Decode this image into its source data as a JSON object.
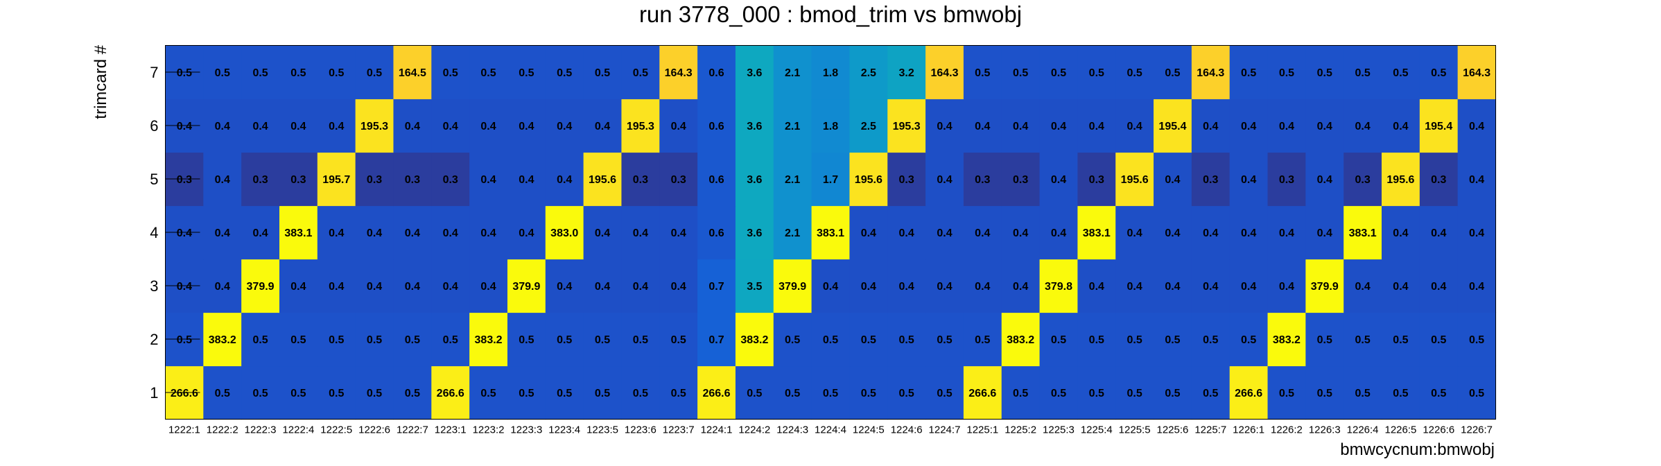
{
  "chart_data": {
    "type": "heatmap",
    "title": "run 3778_000 : bmod_trim vs bmwobj",
    "xlabel": "bmwcycnum:bmwobj",
    "ylabel": "trimcard #",
    "x_categories": [
      "1222:1",
      "1222:2",
      "1222:3",
      "1222:4",
      "1222:5",
      "1222:6",
      "1222:7",
      "1223:1",
      "1223:2",
      "1223:3",
      "1223:4",
      "1223:5",
      "1223:6",
      "1223:7",
      "1224:1",
      "1224:2",
      "1224:3",
      "1224:4",
      "1224:5",
      "1224:6",
      "1224:7",
      "1225:1",
      "1225:2",
      "1225:3",
      "1225:4",
      "1225:5",
      "1225:6",
      "1225:7",
      "1226:1",
      "1226:2",
      "1226:3",
      "1226:4",
      "1226:5",
      "1226:6",
      "1226:7"
    ],
    "y_categories": [
      "1",
      "2",
      "3",
      "4",
      "5",
      "6",
      "7"
    ],
    "values": [
      [
        "266.6",
        "0.5",
        "0.5",
        "0.5",
        "0.5",
        "0.5",
        "0.5",
        "266.6",
        "0.5",
        "0.5",
        "0.5",
        "0.5",
        "0.5",
        "0.5",
        "266.6",
        "0.5",
        "0.5",
        "0.5",
        "0.5",
        "0.5",
        "0.5",
        "266.6",
        "0.5",
        "0.5",
        "0.5",
        "0.5",
        "0.5",
        "0.5",
        "266.6",
        "0.5",
        "0.5",
        "0.5",
        "0.5",
        "0.5",
        "0.5"
      ],
      [
        "0.5",
        "383.2",
        "0.5",
        "0.5",
        "0.5",
        "0.5",
        "0.5",
        "0.5",
        "383.2",
        "0.5",
        "0.5",
        "0.5",
        "0.5",
        "0.5",
        "0.7",
        "383.2",
        "0.5",
        "0.5",
        "0.5",
        "0.5",
        "0.5",
        "0.5",
        "383.2",
        "0.5",
        "0.5",
        "0.5",
        "0.5",
        "0.5",
        "0.5",
        "383.2",
        "0.5",
        "0.5",
        "0.5",
        "0.5",
        "0.5"
      ],
      [
        "0.4",
        "0.4",
        "379.9",
        "0.4",
        "0.4",
        "0.4",
        "0.4",
        "0.4",
        "0.4",
        "379.9",
        "0.4",
        "0.4",
        "0.4",
        "0.4",
        "0.7",
        "3.5",
        "379.9",
        "0.4",
        "0.4",
        "0.4",
        "0.4",
        "0.4",
        "0.4",
        "379.8",
        "0.4",
        "0.4",
        "0.4",
        "0.4",
        "0.4",
        "0.4",
        "379.9",
        "0.4",
        "0.4",
        "0.4",
        "0.4"
      ],
      [
        "0.4",
        "0.4",
        "0.4",
        "383.1",
        "0.4",
        "0.4",
        "0.4",
        "0.4",
        "0.4",
        "0.4",
        "383.0",
        "0.4",
        "0.4",
        "0.4",
        "0.6",
        "3.6",
        "2.1",
        "383.1",
        "0.4",
        "0.4",
        "0.4",
        "0.4",
        "0.4",
        "0.4",
        "383.1",
        "0.4",
        "0.4",
        "0.4",
        "0.4",
        "0.4",
        "0.4",
        "383.1",
        "0.4",
        "0.4",
        "0.4"
      ],
      [
        "0.3",
        "0.4",
        "0.3",
        "0.3",
        "195.7",
        "0.3",
        "0.3",
        "0.3",
        "0.4",
        "0.4",
        "0.4",
        "195.6",
        "0.3",
        "0.3",
        "0.6",
        "3.6",
        "2.1",
        "1.7",
        "195.6",
        "0.3",
        "0.4",
        "0.3",
        "0.3",
        "0.4",
        "0.3",
        "195.6",
        "0.4",
        "0.3",
        "0.4",
        "0.3",
        "0.4",
        "0.3",
        "195.6",
        "0.3",
        "0.4"
      ],
      [
        "0.4",
        "0.4",
        "0.4",
        "0.4",
        "0.4",
        "195.3",
        "0.4",
        "0.4",
        "0.4",
        "0.4",
        "0.4",
        "0.4",
        "195.3",
        "0.4",
        "0.6",
        "3.6",
        "2.1",
        "1.8",
        "2.5",
        "195.3",
        "0.4",
        "0.4",
        "0.4",
        "0.4",
        "0.4",
        "0.4",
        "195.4",
        "0.4",
        "0.4",
        "0.4",
        "0.4",
        "0.4",
        "0.4",
        "195.4",
        "0.4"
      ],
      [
        "0.5",
        "0.5",
        "0.5",
        "0.5",
        "0.5",
        "0.5",
        "164.5",
        "0.5",
        "0.5",
        "0.5",
        "0.5",
        "0.5",
        "0.5",
        "164.3",
        "0.6",
        "3.6",
        "2.1",
        "1.8",
        "2.5",
        "3.2",
        "164.3",
        "0.5",
        "0.5",
        "0.5",
        "0.5",
        "0.5",
        "0.5",
        "164.3",
        "0.5",
        "0.5",
        "0.5",
        "0.5",
        "0.5",
        "0.5",
        "164.3"
      ]
    ],
    "colorscale": [
      {
        "v": 0.0,
        "color": "#2b3d9e"
      },
      {
        "v": 0.3,
        "color": "#2b3d9e"
      },
      {
        "v": 0.4,
        "color": "#1e4fc6"
      },
      {
        "v": 0.55,
        "color": "#1c53cc"
      },
      {
        "v": 0.75,
        "color": "#1466d9"
      },
      {
        "v": 1.8,
        "color": "#118ad1"
      },
      {
        "v": 2.5,
        "color": "#0e9ac9"
      },
      {
        "v": 3.6,
        "color": "#0ea8c0"
      },
      {
        "v": 164.0,
        "color": "#fcd02a"
      },
      {
        "v": 195.0,
        "color": "#fbe31f"
      },
      {
        "v": 266.0,
        "color": "#fbee17"
      },
      {
        "v": 380.0,
        "color": "#fafa0c"
      }
    ],
    "grid": false,
    "legend": "none"
  }
}
